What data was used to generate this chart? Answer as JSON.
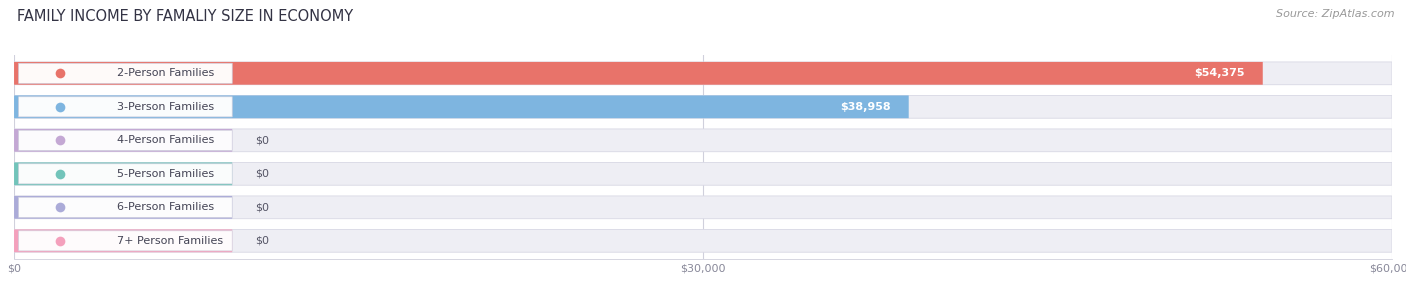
{
  "title": "FAMILY INCOME BY FAMALIY SIZE IN ECONOMY",
  "source": "Source: ZipAtlas.com",
  "categories": [
    "2-Person Families",
    "3-Person Families",
    "4-Person Families",
    "5-Person Families",
    "6-Person Families",
    "7+ Person Families"
  ],
  "values": [
    54375,
    38958,
    0,
    0,
    0,
    0
  ],
  "bar_colors": [
    "#E8736A",
    "#7EB5E0",
    "#C4A8D4",
    "#72C4BA",
    "#ABABD8",
    "#F4A0BC"
  ],
  "value_labels": [
    "$54,375",
    "$38,958",
    "$0",
    "$0",
    "$0",
    "$0"
  ],
  "xlim_max": 60000,
  "xticks": [
    0,
    30000,
    60000
  ],
  "xtick_labels": [
    "$0",
    "$30,000",
    "$60,000"
  ],
  "title_fontsize": 10.5,
  "source_fontsize": 8,
  "label_fontsize": 8,
  "value_fontsize": 8,
  "figsize": [
    14.06,
    3.05
  ],
  "dpi": 100
}
